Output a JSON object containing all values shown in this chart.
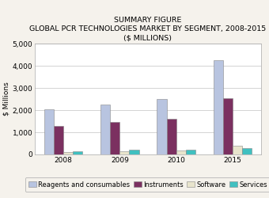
{
  "title_line1": "SUMMARY FIGURE",
  "title_line2": "GLOBAL PCR TECHNOLOGIES MARKET BY SEGMENT, 2008-2015",
  "title_line3": "($ MILLIONS)",
  "years": [
    "2008",
    "2009",
    "2010",
    "2015"
  ],
  "categories": [
    "Reagents and consumables",
    "Instruments",
    "Software",
    "Services"
  ],
  "values": {
    "Reagents and consumables": [
      2050,
      2250,
      2500,
      4250
    ],
    "Instruments": [
      1300,
      1450,
      1600,
      2550
    ],
    "Software": [
      100,
      150,
      180,
      380
    ],
    "Services": [
      160,
      200,
      230,
      270
    ]
  },
  "colors": {
    "Reagents and consumables": "#b8c4e0",
    "Instruments": "#7b3060",
    "Software": "#e8e4cc",
    "Services": "#40c0c0"
  },
  "ylim": [
    0,
    5000
  ],
  "yticks": [
    0,
    1000,
    2000,
    3000,
    4000,
    5000
  ],
  "ytick_labels": [
    "0",
    "1,000",
    "2,000",
    "3,000",
    "4,000",
    "5,000"
  ],
  "ylabel": "$ Millions",
  "background_color": "#f5f2ec",
  "plot_bg_color": "#ffffff",
  "title_fontsize": 6.8,
  "axis_fontsize": 6.5,
  "legend_fontsize": 6.0,
  "bar_width": 0.17,
  "grid_color": "#cccccc"
}
